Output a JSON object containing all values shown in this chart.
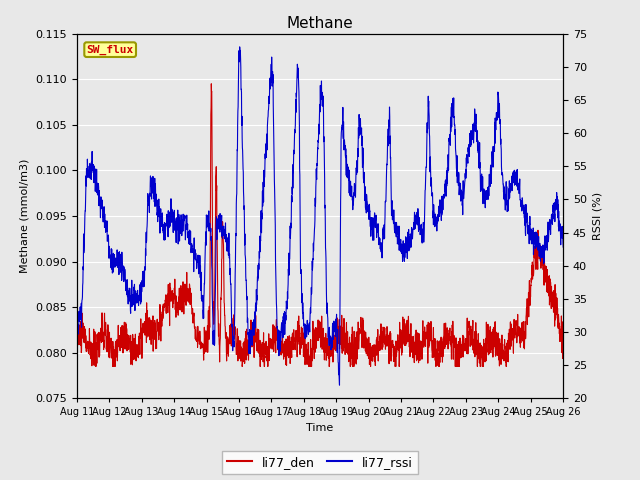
{
  "title": "Methane",
  "xlabel": "Time",
  "ylabel_left": "Methane (mmol/m3)",
  "ylabel_right": "RSSI (%)",
  "ylim_left": [
    0.075,
    0.115
  ],
  "ylim_right": [
    20,
    75
  ],
  "yticks_left": [
    0.075,
    0.08,
    0.085,
    0.09,
    0.095,
    0.1,
    0.105,
    0.11,
    0.115
  ],
  "yticks_right": [
    20,
    25,
    30,
    35,
    40,
    45,
    50,
    55,
    60,
    65,
    70,
    75
  ],
  "xtick_labels": [
    "Aug 11",
    "Aug 12",
    "Aug 13",
    "Aug 14",
    "Aug 15",
    "Aug 16",
    "Aug 17",
    "Aug 18",
    "Aug 19",
    "Aug 20",
    "Aug 21",
    "Aug 22",
    "Aug 23",
    "Aug 24",
    "Aug 25",
    "Aug 26"
  ],
  "line1_color": "#cc0000",
  "line2_color": "#0000cc",
  "line1_label": "li77_den",
  "line2_label": "li77_rssi",
  "legend_box_color": "#ffff99",
  "legend_box_edge": "#999900",
  "legend_text": "SW_flux",
  "legend_text_color": "#cc0000",
  "bg_color": "#e8e8e8",
  "plot_bg_color": "#e8e8e8",
  "grid_color": "#ffffff",
  "linewidth": 0.8
}
